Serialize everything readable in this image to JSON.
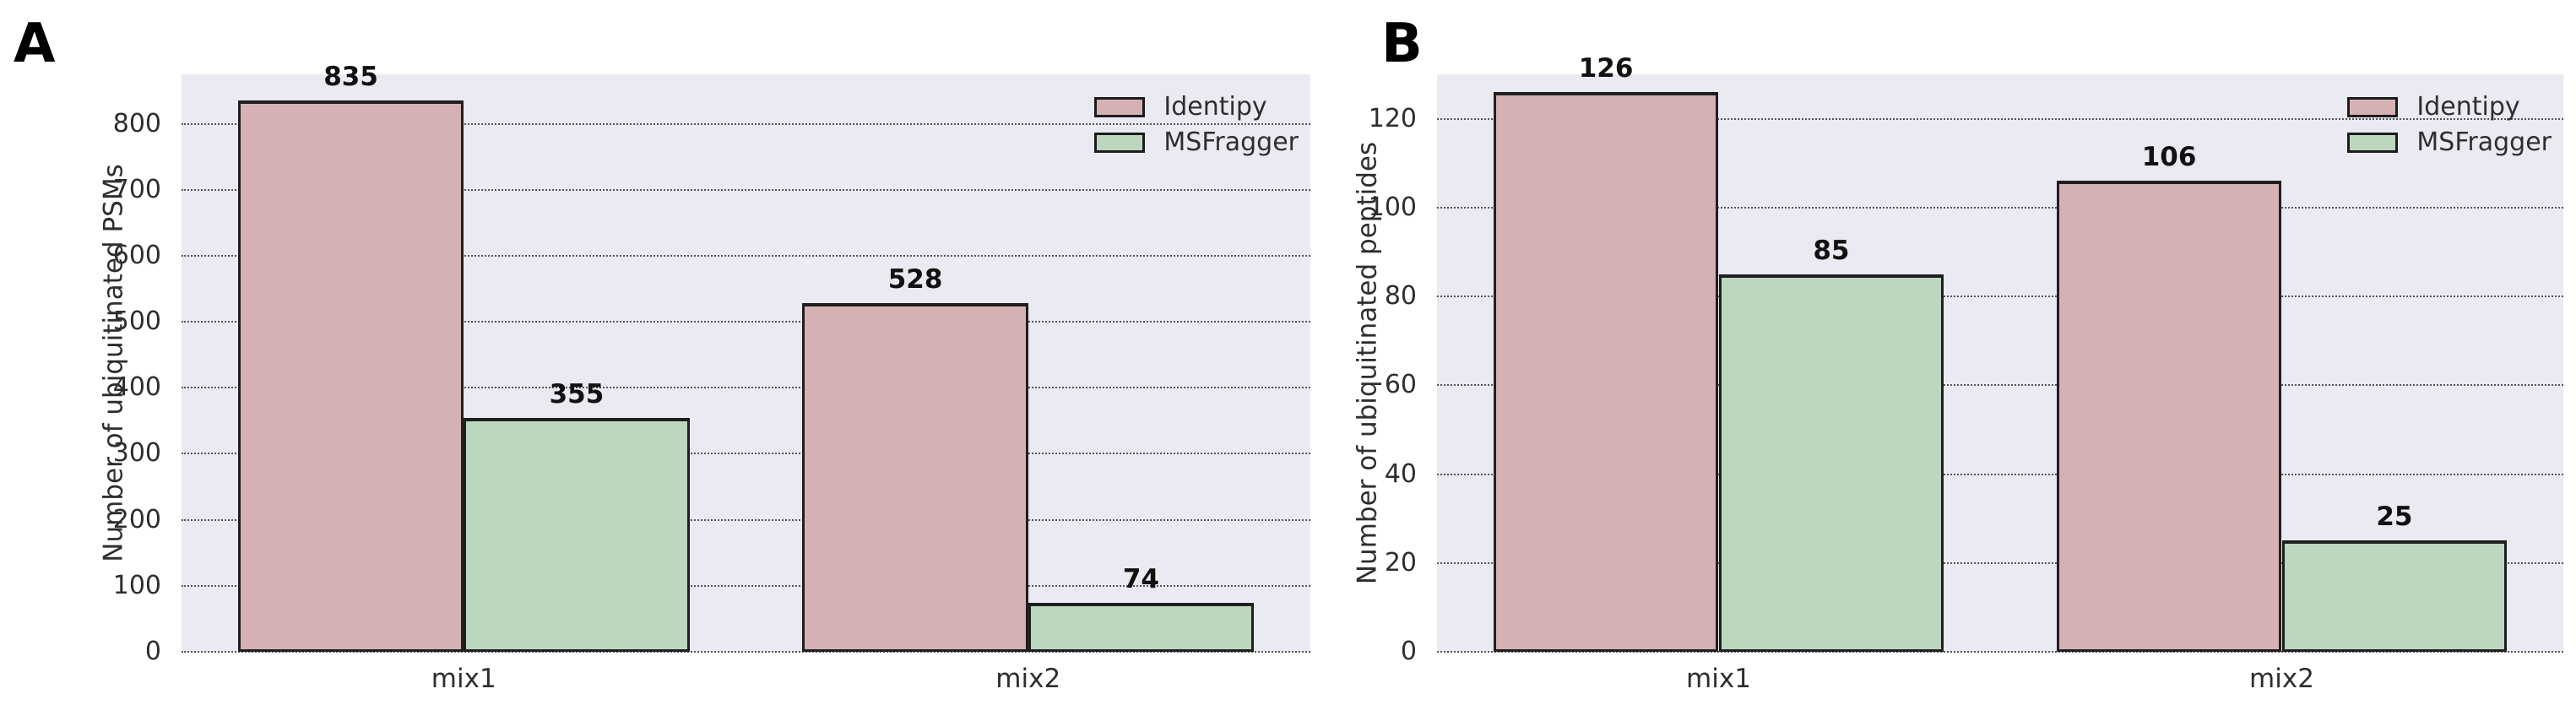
{
  "chart_data": [
    {
      "type": "bar",
      "panel_label": "A",
      "title": "",
      "xlabel": "",
      "ylabel": "Number of ubiquitinated PSMs",
      "categories": [
        "mix1",
        "mix2"
      ],
      "series": [
        {
          "name": "Identipy",
          "color": "#d5b1b3",
          "values": [
            835,
            528
          ]
        },
        {
          "name": "MSFragger",
          "color": "#bdd6be",
          "values": [
            355,
            74
          ]
        }
      ],
      "yticks": [
        0,
        100,
        200,
        300,
        400,
        500,
        600,
        700,
        800
      ],
      "ylim": [
        0,
        875
      ],
      "bar_width_fraction": 0.4,
      "grid": "horizontal-dotted",
      "legend_position": "upper-right"
    },
    {
      "type": "bar",
      "panel_label": "B",
      "title": "",
      "xlabel": "",
      "ylabel": "Number of ubiquitinated peptides",
      "categories": [
        "mix1",
        "mix2"
      ],
      "series": [
        {
          "name": "Identipy",
          "color": "#d5b1b3",
          "values": [
            126,
            106
          ]
        },
        {
          "name": "MSFragger",
          "color": "#bdd6be",
          "values": [
            85,
            25
          ]
        }
      ],
      "yticks": [
        0,
        20,
        40,
        60,
        80,
        100,
        120
      ],
      "ylim": [
        0,
        130
      ],
      "bar_width_fraction": 0.4,
      "grid": "horizontal-dotted",
      "legend_position": "upper-right"
    }
  ],
  "colors": {
    "figure_bg": "#ffffff",
    "plot_bg": "#eaeaf2",
    "grid": "#54545c",
    "bar_edge": "#1f1f1f",
    "text": "#2e2e2e",
    "value_label": "#111111"
  }
}
